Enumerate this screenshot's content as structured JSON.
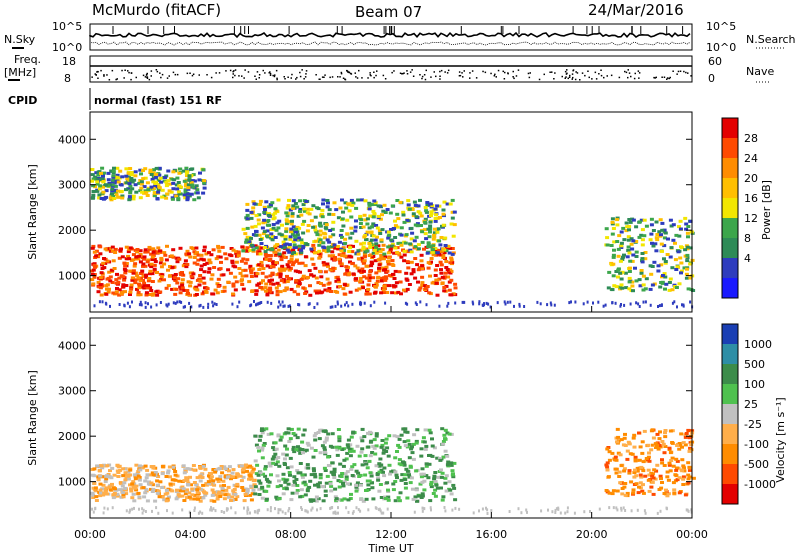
{
  "header": {
    "title": "McMurdo (fitACF)",
    "beam": "Beam 07",
    "date": "24/Mar/2016"
  },
  "strip": {
    "nsky_label": "N.Sky",
    "nsky_ticks": [
      "10^5",
      "10^0"
    ],
    "nsearch_label": "N.Search",
    "nsearch_ticks": [
      "10^5",
      "10^0"
    ],
    "freq_label_1": "Freq.",
    "freq_label_2": "[MHz]",
    "freq_ticks": [
      "18",
      "8"
    ],
    "nave_label": "Nave",
    "nave_ticks": [
      "60",
      "0"
    ],
    "cpid_label": "CPID",
    "cpid_text": "normal (fast) 151 RF"
  },
  "chart_data": [
    {
      "type": "heatmap",
      "panel": "power",
      "ylabel": "Slant Range [km]",
      "xlabel": "",
      "yticks": [
        1000,
        2000,
        3000,
        4000
      ],
      "ylim": [
        200,
        4600
      ],
      "xlim": [
        0,
        24
      ],
      "xticks": [
        "00:00",
        "04:00",
        "08:00",
        "12:00",
        "16:00",
        "20:00",
        "00:00"
      ],
      "colorbar": {
        "label": "Power [dB]",
        "ticks": [
          "28",
          "24",
          "20",
          "16",
          "12",
          "8",
          "4"
        ],
        "colors": [
          "#e30000",
          "#ff4a00",
          "#ff8c00",
          "#ffbf00",
          "#f2e600",
          "#3ca64b",
          "#2e8b57",
          "#2e3cbe",
          "#1a1aff"
        ]
      },
      "echo_regions": [
        {
          "t": [
            0,
            14.5
          ],
          "range_km": [
            600,
            1700
          ],
          "level_db": 28
        },
        {
          "t": [
            0,
            4.5
          ],
          "range_km": [
            2700,
            3400
          ],
          "level_db": 12
        },
        {
          "t": [
            6,
            14.5
          ],
          "range_km": [
            1500,
            2700
          ],
          "level_db": 12
        },
        {
          "t": [
            20.5,
            24
          ],
          "range_km": [
            700,
            2300
          ],
          "level_db": 20
        }
      ]
    },
    {
      "type": "heatmap",
      "panel": "velocity",
      "ylabel": "Slant Range [km]",
      "xlabel": "Time UT",
      "yticks": [
        1000,
        2000,
        3000,
        4000
      ],
      "ylim": [
        200,
        4600
      ],
      "xlim": [
        0,
        24
      ],
      "xticks": [
        "00:00",
        "04:00",
        "08:00",
        "12:00",
        "16:00",
        "20:00",
        "00:00"
      ],
      "colorbar": {
        "label": "Velocity [m s⁻¹]",
        "ticks": [
          "1000",
          "500",
          "100",
          "25",
          "-25",
          "-100",
          "-500",
          "-1000"
        ],
        "colors": [
          "#1a3fb4",
          "#2e8ea6",
          "#3c8c4a",
          "#4fc14f",
          "#c0c0c0",
          "#ffae4a",
          "#ff8c00",
          "#ff4a00",
          "#e30000"
        ]
      },
      "echo_regions": [
        {
          "t": [
            0,
            6.5
          ],
          "range_km": [
            600,
            1400
          ],
          "velocity": -100
        },
        {
          "t": [
            6.5,
            14.5
          ],
          "range_km": [
            600,
            2200
          ],
          "velocity": 100
        },
        {
          "t": [
            20.5,
            24
          ],
          "range_km": [
            700,
            2200
          ],
          "velocity": -500
        }
      ]
    }
  ]
}
